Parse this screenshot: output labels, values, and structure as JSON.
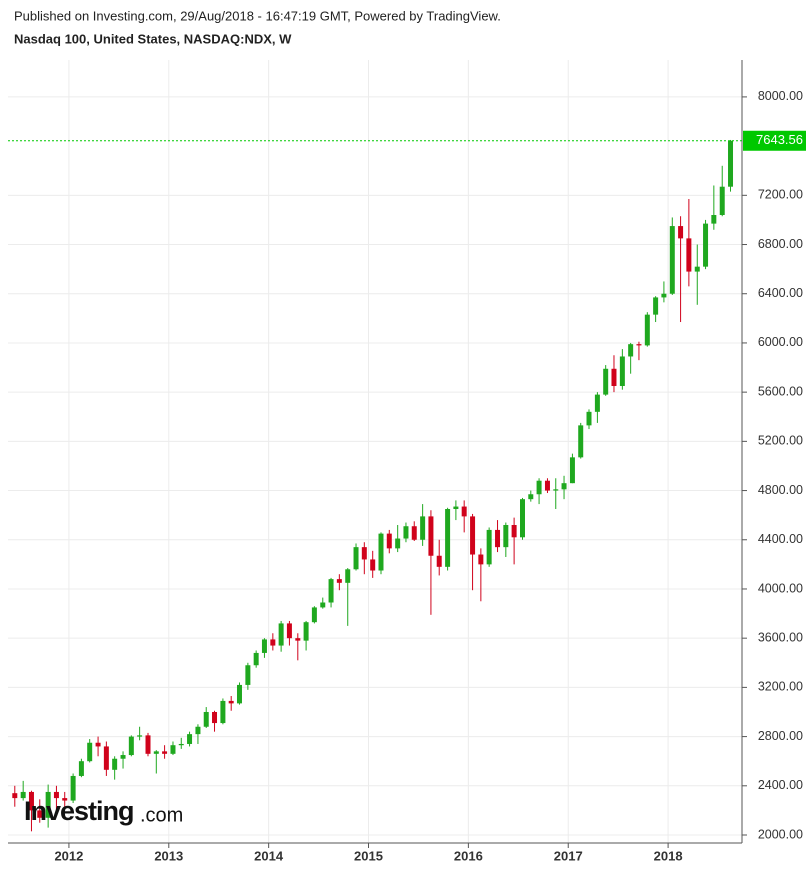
{
  "header": {
    "published": "Published on Investing.com, 29/Aug/2018 - 16:47:19 GMT, Powered by TradingView.",
    "symbol": "Nasdaq 100, United States, NASDAQ:NDX, W"
  },
  "logo": {
    "name": "Investing",
    "suffix": ".com"
  },
  "chart_data": {
    "type": "candlestick",
    "x": [
      2011.458,
      2011.542,
      2011.625,
      2011.708,
      2011.792,
      2011.875,
      2011.958,
      2012.042,
      2012.125,
      2012.208,
      2012.292,
      2012.375,
      2012.458,
      2012.542,
      2012.625,
      2012.708,
      2012.792,
      2012.875,
      2012.958,
      2013.042,
      2013.125,
      2013.208,
      2013.292,
      2013.375,
      2013.458,
      2013.542,
      2013.625,
      2013.708,
      2013.792,
      2013.875,
      2013.958,
      2014.042,
      2014.125,
      2014.208,
      2014.292,
      2014.375,
      2014.458,
      2014.542,
      2014.625,
      2014.708,
      2014.792,
      2014.875,
      2014.958,
      2015.042,
      2015.125,
      2015.208,
      2015.292,
      2015.375,
      2015.458,
      2015.542,
      2015.625,
      2015.708,
      2015.792,
      2015.875,
      2015.958,
      2016.042,
      2016.125,
      2016.208,
      2016.292,
      2016.375,
      2016.458,
      2016.542,
      2016.625,
      2016.708,
      2016.792,
      2016.875,
      2016.958,
      2017.042,
      2017.125,
      2017.208,
      2017.292,
      2017.375,
      2017.458,
      2017.542,
      2017.625,
      2017.708,
      2017.792,
      2017.875,
      2017.958,
      2018.042,
      2018.125,
      2018.208,
      2018.292,
      2018.375,
      2018.458,
      2018.542,
      2018.625
    ],
    "open": [
      2340,
      2300,
      2350,
      2200,
      2140,
      2350,
      2300,
      2280,
      2480,
      2600,
      2750,
      2720,
      2530,
      2620,
      2650,
      2800,
      2810,
      2660,
      2680,
      2660,
      2730,
      2740,
      2820,
      2880,
      3000,
      2910,
      3090,
      3070,
      3220,
      3380,
      3480,
      3590,
      3540,
      3720,
      3600,
      3580,
      3730,
      3850,
      3890,
      4080,
      4050,
      4160,
      4340,
      4240,
      4150,
      4450,
      4330,
      4410,
      4510,
      4400,
      4590,
      4270,
      4180,
      4650,
      4670,
      4590,
      4280,
      4200,
      4480,
      4340,
      4520,
      4420,
      4730,
      4770,
      4880,
      4800,
      4810,
      4860,
      5070,
      5330,
      5440,
      5580,
      5790,
      5650,
      5890,
      5990,
      5980,
      6230,
      6370,
      6400,
      6950,
      6850,
      6580,
      6620,
      6970,
      7040,
      7270
    ],
    "high": [
      2400,
      2440,
      2360,
      2290,
      2410,
      2400,
      2350,
      2500,
      2620,
      2780,
      2800,
      2760,
      2640,
      2680,
      2810,
      2880,
      2830,
      2690,
      2730,
      2760,
      2790,
      2840,
      2900,
      3040,
      3010,
      3110,
      3130,
      3240,
      3400,
      3500,
      3600,
      3640,
      3740,
      3740,
      3640,
      3740,
      3860,
      3930,
      4090,
      4120,
      4170,
      4370,
      4380,
      4310,
      4460,
      4480,
      4520,
      4540,
      4550,
      4690,
      4640,
      4400,
      4660,
      4720,
      4720,
      4610,
      4330,
      4500,
      4560,
      4540,
      4580,
      4740,
      4800,
      4900,
      4900,
      4900,
      4920,
      5100,
      5350,
      5460,
      5600,
      5820,
      5900,
      5950,
      6000,
      6010,
      6250,
      6380,
      6500,
      7020,
      7030,
      7170,
      6800,
      7000,
      7280,
      7440,
      7650
    ],
    "low": [
      2230,
      2280,
      2030,
      2100,
      2060,
      2170,
      2210,
      2260,
      2470,
      2590,
      2640,
      2480,
      2450,
      2540,
      2640,
      2770,
      2640,
      2500,
      2620,
      2650,
      2700,
      2720,
      2740,
      2870,
      2840,
      2900,
      3010,
      3060,
      3180,
      3360,
      3440,
      3500,
      3490,
      3540,
      3420,
      3500,
      3720,
      3840,
      3850,
      3990,
      3700,
      4150,
      4120,
      4090,
      4120,
      4290,
      4300,
      4380,
      4390,
      4350,
      3790,
      4110,
      4150,
      4560,
      4460,
      3990,
      3900,
      4180,
      4300,
      4260,
      4200,
      4400,
      4710,
      4690,
      4780,
      4650,
      4730,
      4860,
      5060,
      5300,
      5350,
      5570,
      5600,
      5620,
      5750,
      5860,
      5970,
      6170,
      6330,
      6390,
      6170,
      6460,
      6310,
      6600,
      6920,
      7030,
      7230
    ],
    "close": [
      2300,
      2350,
      2200,
      2140,
      2350,
      2300,
      2280,
      2480,
      2600,
      2750,
      2720,
      2530,
      2620,
      2650,
      2800,
      2810,
      2660,
      2680,
      2660,
      2730,
      2740,
      2820,
      2880,
      3000,
      2910,
      3090,
      3070,
      3220,
      3380,
      3480,
      3590,
      3540,
      3720,
      3600,
      3580,
      3730,
      3850,
      3890,
      4080,
      4050,
      4160,
      4340,
      4240,
      4150,
      4450,
      4330,
      4410,
      4510,
      4400,
      4590,
      4270,
      4180,
      4650,
      4670,
      4590,
      4280,
      4200,
      4480,
      4340,
      4520,
      4420,
      4730,
      4770,
      4880,
      4800,
      4810,
      4860,
      5070,
      5330,
      5440,
      5580,
      5790,
      5650,
      5890,
      5990,
      5980,
      6230,
      6370,
      6400,
      6950,
      6850,
      6580,
      6620,
      6970,
      7040,
      7270,
      7643.56
    ],
    "up_color": "#1fa81f",
    "down_color": "#d0021b",
    "last_price_color": "#00c800",
    "xlim": [
      2011.39,
      2018.74
    ],
    "ylim": [
      1935,
      8300
    ],
    "xticks": [
      2012,
      2013,
      2014,
      2015,
      2016,
      2017,
      2018
    ],
    "yticks": [
      {
        "value": 2000,
        "label": "2000.00"
      },
      {
        "value": 2400,
        "label": "2400.00"
      },
      {
        "value": 2800,
        "label": "2800.00"
      },
      {
        "value": 3200,
        "label": "3200.00"
      },
      {
        "value": 3600,
        "label": "3600.00"
      },
      {
        "value": 4000,
        "label": "4000.00"
      },
      {
        "value": 4400,
        "label": "4400.00"
      },
      {
        "value": 4800,
        "label": "4800.00"
      },
      {
        "value": 5200,
        "label": "5200.00"
      },
      {
        "value": 5600,
        "label": "5600.00"
      },
      {
        "value": 6000,
        "label": "6000.00"
      },
      {
        "value": 6400,
        "label": "6400.00"
      },
      {
        "value": 6800,
        "label": "6800.00"
      },
      {
        "value": 7200,
        "label": "7200.00"
      },
      {
        "value": 8000,
        "label": "8000.00"
      }
    ],
    "grid": true
  }
}
